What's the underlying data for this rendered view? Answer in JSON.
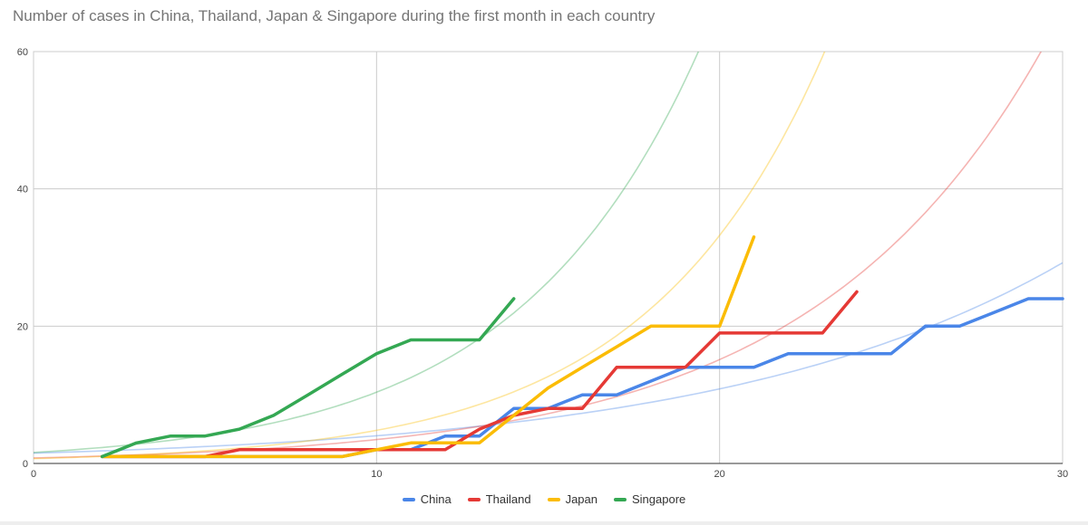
{
  "chart_data": {
    "type": "line",
    "title": "Number of cases in China, Thailand, Japan & Singapore during the first month in each country",
    "xlabel": "",
    "ylabel": "",
    "xlim": [
      0,
      30
    ],
    "ylim": [
      0,
      60
    ],
    "x_ticks": [
      0,
      10,
      20,
      30
    ],
    "y_ticks": [
      0,
      20,
      40,
      60
    ],
    "grid": true,
    "legend_position": "bottom",
    "series": [
      {
        "name": "China",
        "color": "#4a86e8",
        "points": [
          [
            2,
            1
          ],
          [
            9,
            1
          ],
          [
            10,
            2
          ],
          [
            11,
            2
          ],
          [
            12,
            4
          ],
          [
            13,
            4
          ],
          [
            14,
            8
          ],
          [
            15,
            8
          ],
          [
            16,
            10
          ],
          [
            17,
            10
          ],
          [
            18,
            12
          ],
          [
            19,
            14
          ],
          [
            20,
            14
          ],
          [
            21,
            14
          ],
          [
            22,
            16
          ],
          [
            23,
            16
          ],
          [
            24,
            16
          ],
          [
            25,
            16
          ],
          [
            26,
            20
          ],
          [
            27,
            20
          ],
          [
            28,
            22
          ],
          [
            29,
            24
          ],
          [
            30,
            24
          ]
        ],
        "trendline": {
          "a": 1.5,
          "b": 0.099
        }
      },
      {
        "name": "Thailand",
        "color": "#e53935",
        "points": [
          [
            2,
            1
          ],
          [
            5,
            1
          ],
          [
            6,
            2
          ],
          [
            7,
            2
          ],
          [
            8,
            2
          ],
          [
            9,
            2
          ],
          [
            10,
            2
          ],
          [
            11,
            2
          ],
          [
            12,
            2
          ],
          [
            13,
            5
          ],
          [
            14,
            7
          ],
          [
            15,
            8
          ],
          [
            16,
            8
          ],
          [
            17,
            14
          ],
          [
            18,
            14
          ],
          [
            19,
            14
          ],
          [
            20,
            19
          ],
          [
            21,
            19
          ],
          [
            22,
            19
          ],
          [
            23,
            19
          ],
          [
            24,
            25
          ]
        ],
        "trendline": {
          "a": 0.8,
          "b": 0.147
        }
      },
      {
        "name": "Japan",
        "color": "#fbbc04",
        "points": [
          [
            2,
            1
          ],
          [
            9,
            1
          ],
          [
            10,
            2
          ],
          [
            11,
            3
          ],
          [
            12,
            3
          ],
          [
            13,
            3
          ],
          [
            14,
            7
          ],
          [
            15,
            11
          ],
          [
            16,
            14
          ],
          [
            17,
            17
          ],
          [
            18,
            20
          ],
          [
            19,
            20
          ],
          [
            20,
            20
          ],
          [
            21,
            33
          ]
        ],
        "trendline": {
          "a": 0.7,
          "b": 0.193
        }
      },
      {
        "name": "Singapore",
        "color": "#34a853",
        "points": [
          [
            2,
            1
          ],
          [
            3,
            3
          ],
          [
            4,
            4
          ],
          [
            5,
            4
          ],
          [
            6,
            5
          ],
          [
            7,
            7
          ],
          [
            8,
            10
          ],
          [
            9,
            13
          ],
          [
            10,
            16
          ],
          [
            11,
            18
          ],
          [
            12,
            18
          ],
          [
            13,
            18
          ],
          [
            14,
            24
          ]
        ],
        "trendline": {
          "a": 1.6,
          "b": 0.187
        }
      }
    ]
  }
}
